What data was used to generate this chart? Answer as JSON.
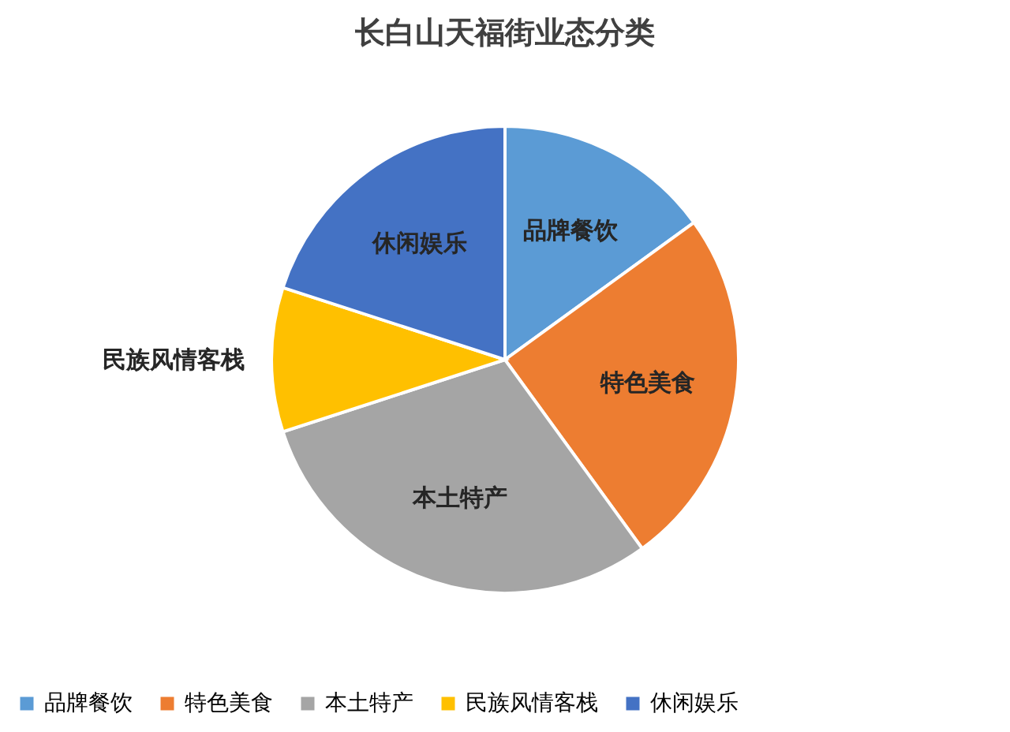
{
  "chart_data": {
    "type": "pie",
    "title": "长白山天福街业态分类",
    "categories": [
      "品牌餐饮",
      "特色美食",
      "本土特产",
      "民族风情客栈",
      "休闲娱乐"
    ],
    "values": [
      15,
      25,
      30,
      10,
      20
    ],
    "colors": [
      "#5b9bd5",
      "#ed7d31",
      "#a5a5a5",
      "#ffc000",
      "#4472c4"
    ],
    "legend": "bottom"
  }
}
